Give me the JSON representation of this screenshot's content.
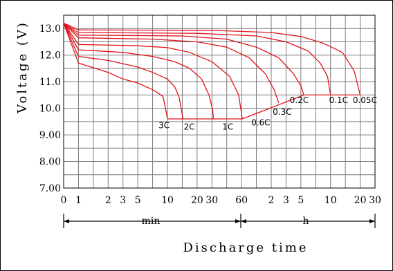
{
  "chart_data": {
    "type": "line",
    "title": "",
    "ylabel": "Voltage (V)",
    "xlabel": "Discharge time",
    "ylim": [
      7.0,
      13.5
    ],
    "y_ticks": [
      "7.00",
      "8.00",
      "9.00",
      "10.0",
      "11.0",
      "12.0",
      "13.0"
    ],
    "x_ticks": [
      {
        "label": "0",
        "pos": 0
      },
      {
        "label": "1",
        "pos": 1
      },
      {
        "label": "2",
        "pos": 3
      },
      {
        "label": "3",
        "pos": 4
      },
      {
        "label": "5",
        "pos": 5
      },
      {
        "label": "10",
        "pos": 7
      },
      {
        "label": "20",
        "pos": 9
      },
      {
        "label": "30",
        "pos": 10
      },
      {
        "label": "60",
        "pos": 12
      },
      {
        "label": "2",
        "pos": 14
      },
      {
        "label": "3",
        "pos": 15
      },
      {
        "label": "5",
        "pos": 16
      },
      {
        "label": "10",
        "pos": 18
      },
      {
        "label": "20",
        "pos": 20
      },
      {
        "label": "30",
        "pos": 21
      }
    ],
    "x_scale": "log time (min, then h)",
    "grid": true,
    "time_units": {
      "left": "min",
      "right": "h"
    },
    "series": [
      {
        "name": "3C",
        "label_at": [
          6.4,
          9.25
        ],
        "points": [
          [
            0,
            13.2
          ],
          [
            1,
            11.7
          ],
          [
            3,
            11.35
          ],
          [
            4,
            11.1
          ],
          [
            5,
            10.95
          ],
          [
            6,
            10.7
          ],
          [
            6.7,
            10.45
          ],
          [
            6.9,
            9.9
          ],
          [
            7.0,
            9.6
          ]
        ]
      },
      {
        "name": "2C",
        "label_at": [
          8.1,
          9.2
        ],
        "points": [
          [
            0,
            13.2
          ],
          [
            1,
            11.95
          ],
          [
            3,
            11.8
          ],
          [
            5,
            11.55
          ],
          [
            6,
            11.35
          ],
          [
            7,
            11.1
          ],
          [
            7.5,
            10.8
          ],
          [
            7.8,
            10.4
          ],
          [
            7.95,
            9.9
          ],
          [
            8.05,
            9.6
          ]
        ]
      },
      {
        "name": "1C",
        "label_at": [
          10.7,
          9.2
        ],
        "points": [
          [
            0,
            13.2
          ],
          [
            1,
            12.2
          ],
          [
            4,
            12.1
          ],
          [
            6,
            11.95
          ],
          [
            7.5,
            11.75
          ],
          [
            8.5,
            11.5
          ],
          [
            9.3,
            11.1
          ],
          [
            9.8,
            10.5
          ],
          [
            10.05,
            9.95
          ],
          [
            10.1,
            9.6
          ]
        ]
      },
      {
        "name": "0.6C",
        "label_at": [
          12.65,
          9.35
        ],
        "points": [
          [
            0,
            13.2
          ],
          [
            1,
            12.4
          ],
          [
            5,
            12.35
          ],
          [
            7,
            12.28
          ],
          [
            8.5,
            12.1
          ],
          [
            10,
            11.75
          ],
          [
            11.2,
            11.2
          ],
          [
            11.8,
            10.5
          ],
          [
            12,
            9.8
          ],
          [
            12.05,
            9.6
          ]
        ]
      },
      {
        "name": "0.3C",
        "label_at": [
          14.1,
          9.75
        ],
        "points": [
          [
            0,
            13.2
          ],
          [
            1,
            12.65
          ],
          [
            6,
            12.6
          ],
          [
            9,
            12.5
          ],
          [
            11,
            12.3
          ],
          [
            12.5,
            11.9
          ],
          [
            13.6,
            11.3
          ],
          [
            14.2,
            10.7
          ],
          [
            14.5,
            10.2
          ]
        ]
      },
      {
        "name": "0.2C",
        "label_at": [
          15.25,
          10.2
        ],
        "points": [
          [
            0,
            13.2
          ],
          [
            1,
            12.75
          ],
          [
            8,
            12.72
          ],
          [
            11,
            12.6
          ],
          [
            13,
            12.3
          ],
          [
            14.5,
            11.9
          ],
          [
            15.5,
            11.3
          ],
          [
            16,
            10.85
          ],
          [
            16.2,
            10.5
          ]
        ]
      },
      {
        "name": "0.1C",
        "label_at": [
          17.9,
          10.2
        ],
        "points": [
          [
            0,
            13.2
          ],
          [
            1,
            12.85
          ],
          [
            9,
            12.82
          ],
          [
            13,
            12.72
          ],
          [
            15,
            12.5
          ],
          [
            16.5,
            12.15
          ],
          [
            17.3,
            11.7
          ],
          [
            17.8,
            11.2
          ],
          [
            18,
            10.5
          ]
        ]
      },
      {
        "name": "0.05C",
        "label_at": [
          19.5,
          10.2
        ],
        "points": [
          [
            0,
            13.2
          ],
          [
            1,
            12.95
          ],
          [
            10,
            12.93
          ],
          [
            14,
            12.85
          ],
          [
            16,
            12.7
          ],
          [
            17.5,
            12.45
          ],
          [
            18.8,
            12.1
          ],
          [
            19.6,
            11.4
          ],
          [
            20,
            10.5
          ]
        ]
      }
    ],
    "cutoff_line": [
      [
        7.0,
        9.6
      ],
      [
        12.05,
        9.6
      ],
      [
        16.2,
        10.5
      ],
      [
        20,
        10.5
      ]
    ]
  }
}
